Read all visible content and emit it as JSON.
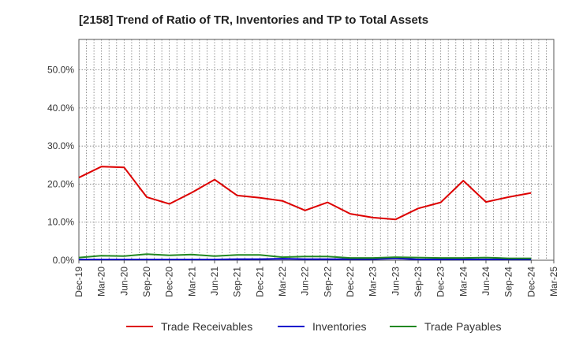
{
  "chart_data": {
    "type": "line",
    "title": "[2158]  Trend of Ratio of TR, Inventories and TP to Total Assets",
    "xlabel": "",
    "ylabel": "",
    "categories": [
      "Dec-19",
      "Mar-20",
      "Jun-20",
      "Sep-20",
      "Dec-20",
      "Mar-21",
      "Jun-21",
      "Sep-21",
      "Dec-21",
      "Mar-22",
      "Jun-22",
      "Sep-22",
      "Dec-22",
      "Mar-23",
      "Jun-23",
      "Sep-23",
      "Dec-23",
      "Mar-24",
      "Jun-24",
      "Sep-24",
      "Dec-24",
      "Mar-25"
    ],
    "y_tick_labels": [
      "0.0%",
      "10.0%",
      "20.0%",
      "30.0%",
      "40.0%",
      "50.0%"
    ],
    "ylim": [
      0,
      58
    ],
    "y_ticks": [
      0,
      10,
      20,
      30,
      40,
      50
    ],
    "grid": true,
    "legend_position": "bottom",
    "series": [
      {
        "name": "Trade Receivables",
        "color": "#dd0000",
        "values": [
          21.7,
          24.6,
          24.4,
          16.6,
          14.8,
          17.8,
          21.2,
          17.0,
          16.4,
          15.6,
          13.1,
          15.2,
          12.2,
          11.2,
          10.7,
          13.6,
          15.2,
          20.9,
          15.3,
          16.6,
          17.7,
          null
        ]
      },
      {
        "name": "Inventories",
        "color": "#0000cc",
        "values": [
          0.2,
          0.2,
          0.2,
          0.2,
          0.2,
          0.2,
          0.2,
          0.3,
          0.3,
          0.4,
          0.3,
          0.3,
          0.3,
          0.3,
          0.5,
          0.2,
          0.2,
          0.2,
          0.2,
          0.2,
          0.2,
          null
        ]
      },
      {
        "name": "Trade Payables",
        "color": "#228822",
        "values": [
          0.7,
          1.2,
          1.1,
          1.6,
          1.3,
          1.5,
          1.1,
          1.4,
          1.4,
          0.8,
          1.0,
          1.0,
          0.6,
          0.6,
          0.8,
          0.7,
          0.6,
          0.6,
          0.7,
          0.5,
          0.5,
          null
        ]
      }
    ]
  }
}
